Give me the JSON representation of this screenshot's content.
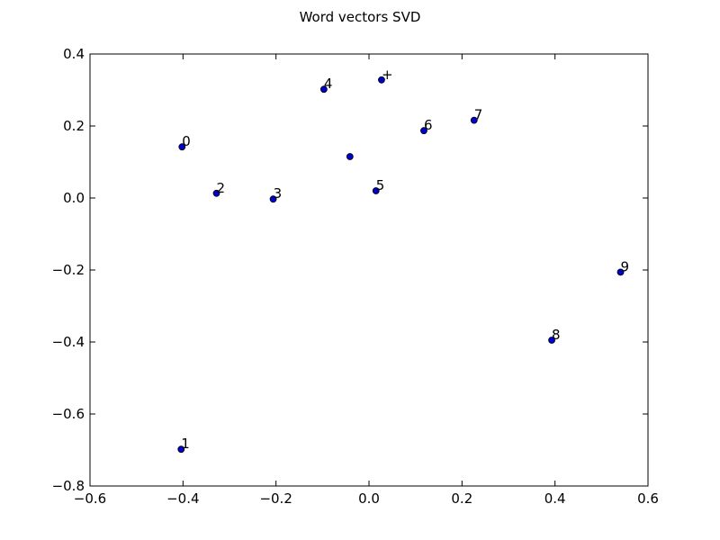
{
  "chart_data": {
    "type": "scatter",
    "title": "Word vectors SVD",
    "xlabel": "",
    "ylabel": "",
    "xlim": [
      -0.6,
      0.6
    ],
    "ylim": [
      -0.8,
      0.4
    ],
    "xticks": [
      "−0.6",
      "−0.4",
      "−0.2",
      "0.0",
      "0.2",
      "0.4",
      "0.6"
    ],
    "yticks": [
      "−0.8",
      "−0.6",
      "−0.4",
      "−0.2",
      "0.0",
      "0.2",
      "0.4"
    ],
    "xtick_values": [
      -0.6,
      -0.4,
      -0.2,
      0.0,
      0.2,
      0.4,
      0.6
    ],
    "ytick_values": [
      -0.8,
      -0.6,
      -0.4,
      -0.2,
      0.0,
      0.2,
      0.4
    ],
    "grid": false,
    "marker_color": "#0000cc",
    "points": [
      {
        "label": "0",
        "x": -0.402,
        "y": 0.142
      },
      {
        "label": "1",
        "x": -0.404,
        "y": -0.698
      },
      {
        "label": "2",
        "x": -0.328,
        "y": 0.013
      },
      {
        "label": "3",
        "x": -0.206,
        "y": -0.003
      },
      {
        "label": "4",
        "x": -0.097,
        "y": 0.302
      },
      {
        "label": "+",
        "x": 0.027,
        "y": 0.328
      },
      {
        "label": "",
        "x": -0.041,
        "y": 0.115
      },
      {
        "label": "5",
        "x": 0.015,
        "y": 0.02
      },
      {
        "label": "6",
        "x": 0.118,
        "y": 0.187
      },
      {
        "label": "7",
        "x": 0.226,
        "y": 0.216
      },
      {
        "label": "8",
        "x": 0.393,
        "y": -0.395
      },
      {
        "label": "9",
        "x": 0.541,
        "y": -0.206
      }
    ]
  }
}
